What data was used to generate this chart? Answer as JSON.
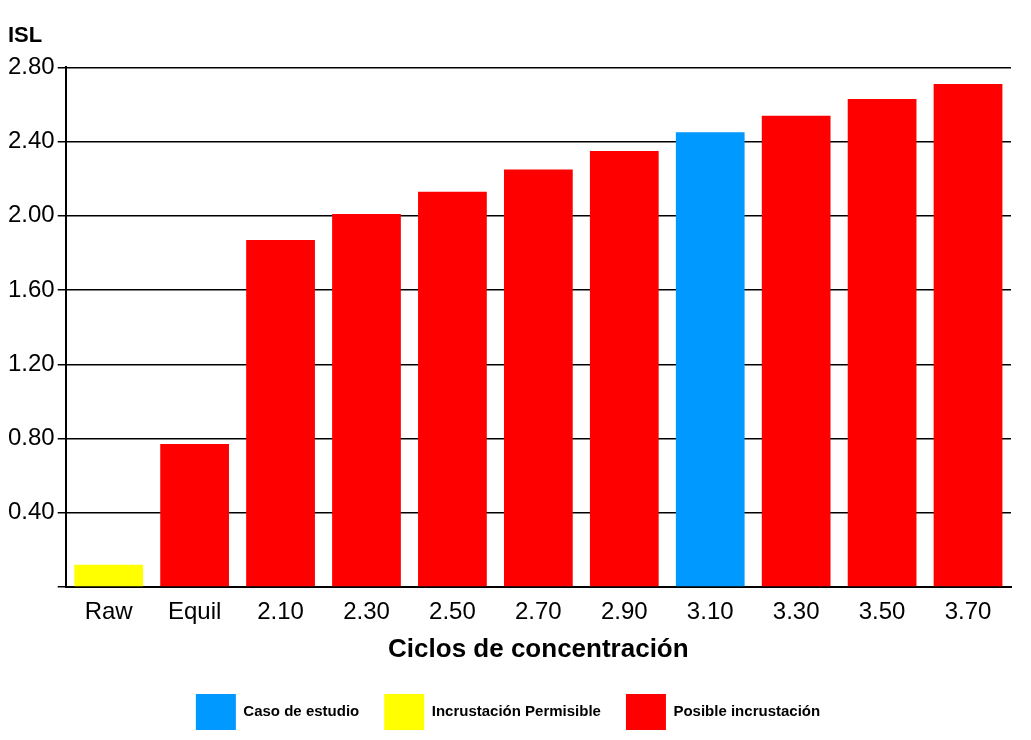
{
  "chart_data": {
    "type": "bar",
    "ylabel": "ISL",
    "xlabel": "Ciclos de concentración",
    "categories": [
      "Raw",
      "Equil",
      "2.10",
      "2.30",
      "2.50",
      "2.70",
      "2.90",
      "3.10",
      "3.30",
      "3.50",
      "3.70"
    ],
    "stacked": true,
    "series": [
      {
        "name": "Caso de estudio",
        "color": "#0099ff",
        "values": [
          null,
          null,
          null,
          null,
          null,
          null,
          null,
          2.45,
          null,
          null,
          null
        ]
      },
      {
        "name": "Incrustación Permisible",
        "color": "#ffff00",
        "values": [
          0.12,
          null,
          null,
          null,
          null,
          null,
          null,
          null,
          null,
          null,
          null
        ]
      },
      {
        "name": "Posible incrustación",
        "color": "#ff0000",
        "values": [
          null,
          0.77,
          1.87,
          2.01,
          2.13,
          2.25,
          2.35,
          null,
          2.54,
          2.63,
          2.71
        ]
      }
    ],
    "ylim": [
      0,
      2.8
    ],
    "yticks": [
      {
        "value": 0,
        "label": null
      },
      {
        "value": 0.4,
        "label": "0.40"
      },
      {
        "value": 0.8,
        "label": "0.80"
      },
      {
        "value": 1.2,
        "label": "1.20"
      },
      {
        "value": 1.6,
        "label": "1.60"
      },
      {
        "value": 2.0,
        "label": "2.00"
      },
      {
        "value": 2.4,
        "label": "2.40"
      },
      {
        "value": 2.8,
        "label": "2.80"
      }
    ],
    "grid": "y",
    "legend": "bottom"
  }
}
